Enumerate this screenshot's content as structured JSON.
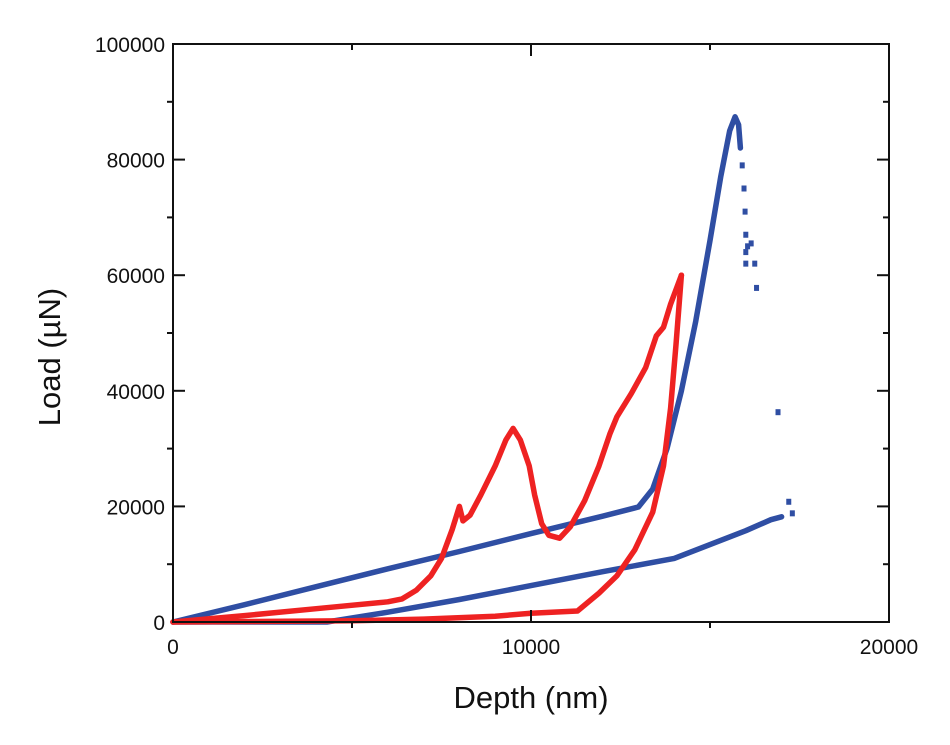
{
  "chart_data": {
    "type": "scatter",
    "title": "",
    "xlabel": "Depth (nm)",
    "ylabel": "Load (µN)",
    "xlim": [
      0,
      20000
    ],
    "ylim": [
      0,
      100000
    ],
    "grid": false,
    "legend": null,
    "x_ticks": [
      0,
      10000,
      20000
    ],
    "x_tick_labels": [
      "0",
      "10000",
      "20000"
    ],
    "x_minor_ticks": [
      5000,
      15000
    ],
    "y_ticks": [
      0,
      20000,
      40000,
      60000,
      80000,
      100000
    ],
    "y_tick_labels": [
      "0",
      "20000",
      "40000",
      "60000",
      "80000",
      "100000"
    ],
    "y_minor_ticks": [
      10000,
      30000,
      50000,
      70000,
      90000
    ],
    "series": [
      {
        "name": "blue-loading",
        "color": "#2f4ea3",
        "points": [
          [
            0,
            0
          ],
          [
            2000,
            3000
          ],
          [
            4000,
            6100
          ],
          [
            6000,
            9200
          ],
          [
            8000,
            12200
          ],
          [
            10000,
            15300
          ],
          [
            12000,
            18300
          ],
          [
            13000,
            19900
          ],
          [
            13400,
            23000
          ],
          [
            13800,
            30000
          ],
          [
            14200,
            40000
          ],
          [
            14600,
            52000
          ],
          [
            15000,
            66000
          ],
          [
            15300,
            77000
          ],
          [
            15550,
            85000
          ],
          [
            15700,
            87400
          ],
          [
            15800,
            86000
          ],
          [
            15850,
            82000
          ]
        ]
      },
      {
        "name": "blue-unloading-dots",
        "color": "#2f4ea3",
        "points": [
          [
            15900,
            79000
          ],
          [
            15950,
            75000
          ],
          [
            15980,
            71000
          ],
          [
            16000,
            67000
          ],
          [
            16000,
            64000
          ],
          [
            16000,
            62000
          ],
          [
            16050,
            65000
          ],
          [
            16150,
            65500
          ],
          [
            16250,
            62000
          ],
          [
            16300,
            57800
          ],
          [
            16900,
            36300
          ],
          [
            17300,
            18800
          ],
          [
            17200,
            20800
          ]
        ]
      },
      {
        "name": "blue-reload",
        "color": "#2f4ea3",
        "points": [
          [
            0,
            0
          ],
          [
            2000,
            0
          ],
          [
            4300,
            0
          ],
          [
            6000,
            1700
          ],
          [
            8000,
            3900
          ],
          [
            10000,
            6300
          ],
          [
            12000,
            8700
          ],
          [
            14000,
            11000
          ],
          [
            16000,
            15800
          ],
          [
            16700,
            17700
          ],
          [
            17000,
            18200
          ]
        ]
      },
      {
        "name": "red-loading",
        "color": "#ee2222",
        "points": [
          [
            0,
            0
          ],
          [
            2000,
            1100
          ],
          [
            4000,
            2300
          ],
          [
            6000,
            3500
          ],
          [
            6400,
            4000
          ],
          [
            6800,
            5500
          ],
          [
            7200,
            8000
          ],
          [
            7500,
            11000
          ],
          [
            7800,
            16000
          ],
          [
            8000,
            20000
          ],
          [
            8100,
            17500
          ],
          [
            8300,
            18500
          ],
          [
            8600,
            22000
          ],
          [
            9000,
            27000
          ],
          [
            9300,
            31500
          ],
          [
            9500,
            33500
          ],
          [
            9700,
            31500
          ],
          [
            9950,
            27000
          ],
          [
            10100,
            22000
          ],
          [
            10300,
            17000
          ],
          [
            10500,
            15000
          ],
          [
            10800,
            14500
          ],
          [
            11100,
            16500
          ],
          [
            11500,
            21000
          ],
          [
            11900,
            27000
          ],
          [
            12200,
            32500
          ],
          [
            12400,
            35500
          ],
          [
            12800,
            39500
          ],
          [
            13200,
            44000
          ],
          [
            13500,
            49500
          ],
          [
            13700,
            51000
          ],
          [
            13900,
            55000
          ],
          [
            14200,
            60000
          ]
        ]
      },
      {
        "name": "red-unloading",
        "color": "#ee2222",
        "points": [
          [
            14200,
            60000
          ],
          [
            14050,
            48000
          ],
          [
            13900,
            37000
          ],
          [
            13700,
            27000
          ],
          [
            13400,
            19000
          ],
          [
            12900,
            12500
          ],
          [
            12400,
            8000
          ],
          [
            11900,
            5000
          ],
          [
            11300,
            1900
          ],
          [
            10000,
            1500
          ],
          [
            9000,
            1000
          ],
          [
            7000,
            500
          ],
          [
            5000,
            200
          ],
          [
            0,
            0
          ]
        ]
      }
    ]
  },
  "axes": {
    "x_title": "Depth (nm)",
    "y_title": "Load (µN)"
  }
}
